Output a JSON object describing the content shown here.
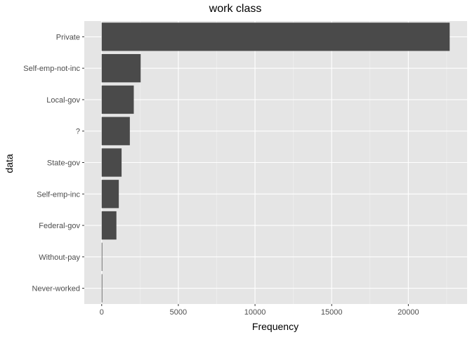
{
  "chart_data": {
    "type": "bar",
    "orientation": "horizontal",
    "title": "work class",
    "xlabel": "Frequency",
    "ylabel": "data",
    "categories": [
      "Private",
      "Self-emp-not-inc",
      "Local-gov",
      "?",
      "State-gov",
      "Self-emp-inc",
      "Federal-gov",
      "Without-pay",
      "Never-worked"
    ],
    "values": [
      22696,
      2541,
      2093,
      1836,
      1298,
      1116,
      960,
      14,
      7
    ],
    "xlim": [
      -1135,
      23831
    ],
    "xticks": [
      0,
      5000,
      10000,
      15000,
      20000
    ],
    "xtick_labels": [
      "0",
      "5000",
      "10000",
      "15000",
      "20000"
    ],
    "grid": true,
    "legend": "none",
    "colors": {
      "bar": "#4a4a4a",
      "panel": "#e5e5e5",
      "grid_major": "#ffffff",
      "grid_minor": "#f2f2f2",
      "tick": "#333333"
    }
  }
}
